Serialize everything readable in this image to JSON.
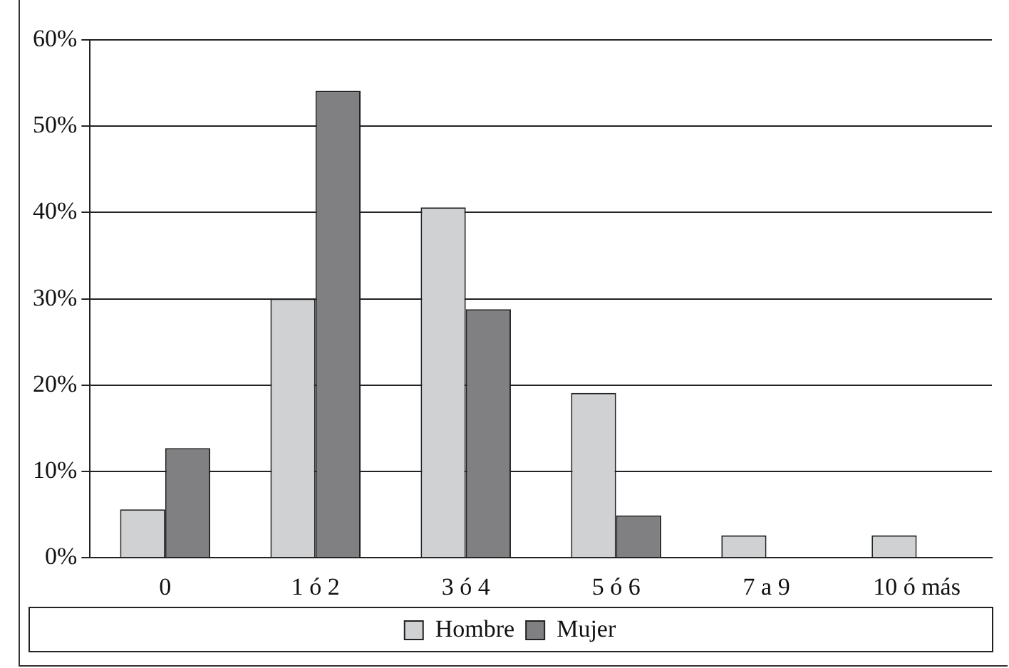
{
  "chart_data": {
    "type": "bar",
    "categories": [
      "0",
      "1 ó 2",
      "3 ó 4",
      "5 ó 6",
      "7 a 9",
      "10 ó más"
    ],
    "series": [
      {
        "name": "Hombre",
        "color": "#d0d1d3",
        "values": [
          5.6,
          30,
          40.6,
          19.1,
          2.6,
          2.6
        ]
      },
      {
        "name": "Mujer",
        "color": "#808083",
        "values": [
          12.7,
          54.1,
          28.8,
          4.9,
          0,
          0
        ]
      }
    ],
    "ylim": [
      0,
      60
    ],
    "yticks": [
      {
        "value": 0,
        "label": "0%"
      },
      {
        "value": 10,
        "label": "10%"
      },
      {
        "value": 20,
        "label": "20%"
      },
      {
        "value": 30,
        "label": "30%"
      },
      {
        "value": 40,
        "label": "40%"
      },
      {
        "value": 50,
        "label": "50%"
      },
      {
        "value": 60,
        "label": "60%"
      }
    ],
    "grid": "y",
    "legend": "bottom"
  }
}
